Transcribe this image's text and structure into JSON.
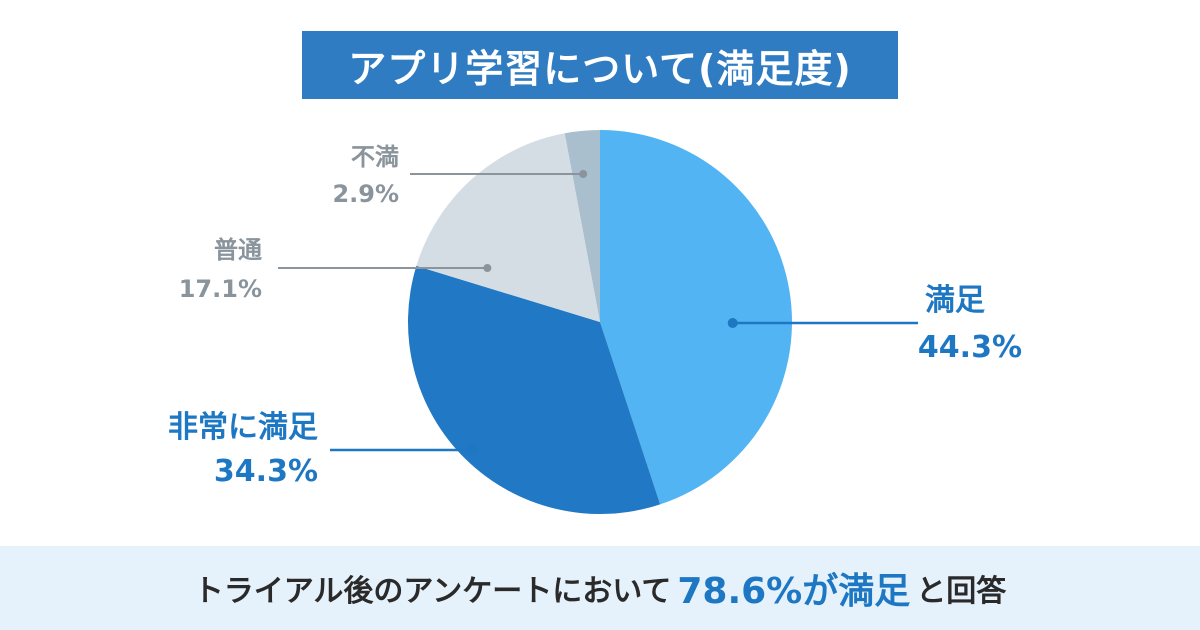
{
  "title": "アプリ学習について(満足度)",
  "chart_data": {
    "type": "pie",
    "title": "アプリ学習について(満足度)",
    "slices": [
      {
        "label": "満足",
        "value": 44.3,
        "value_label": "44.3%",
        "color": "#52b4f2",
        "label_color": "#1e77c2"
      },
      {
        "label": "非常に満足",
        "value": 34.3,
        "value_label": "34.3%",
        "color": "#2178c4",
        "label_color": "#1e77c2"
      },
      {
        "label": "普通",
        "value": 17.1,
        "value_label": "17.1%",
        "color": "#d5dde4",
        "label_color": "#8a949c"
      },
      {
        "label": "不満",
        "value": 2.9,
        "value_label": "2.9%",
        "color": "#a9bfcd",
        "label_color": "#8a949c"
      }
    ]
  },
  "footer": {
    "pre": "トライアル後のアンケートにおいて",
    "highlight": "78.6%が満足",
    "post": "と回答"
  },
  "colors": {
    "title_bg": "#2f7cc2",
    "footer_bg": "#e6f2fb",
    "accent": "#1e77c2"
  }
}
